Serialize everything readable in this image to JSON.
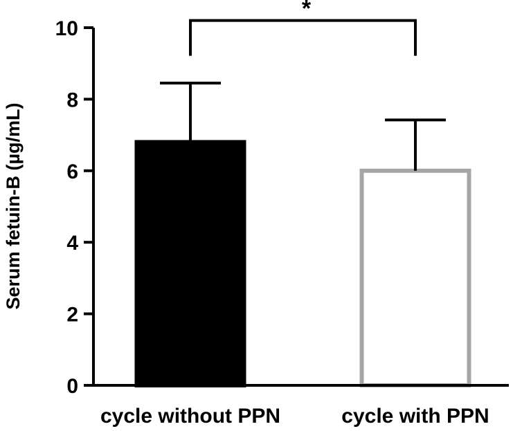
{
  "chart_data": {
    "type": "bar",
    "title": "",
    "xlabel": "",
    "ylabel": "Serum fetuin-B (µg/mL)",
    "categories": [
      "cycle without  PPN",
      "cycle with PPN"
    ],
    "values": [
      6.8,
      6.0
    ],
    "error": [
      1.65,
      1.42
    ],
    "ylim": [
      0,
      10
    ],
    "yticks": [
      0,
      2,
      4,
      6,
      8,
      10
    ],
    "ytick_labels": [
      "0",
      "2",
      "4",
      "6",
      "8",
      "10"
    ],
    "bar_fill": [
      "#000000",
      "#ffffff"
    ],
    "bar_stroke": [
      "#000000",
      "#a6a6a6"
    ],
    "grid": false,
    "legend": "none",
    "significance": {
      "from": 0,
      "to": 1,
      "label": "*",
      "level": 10.2
    }
  }
}
